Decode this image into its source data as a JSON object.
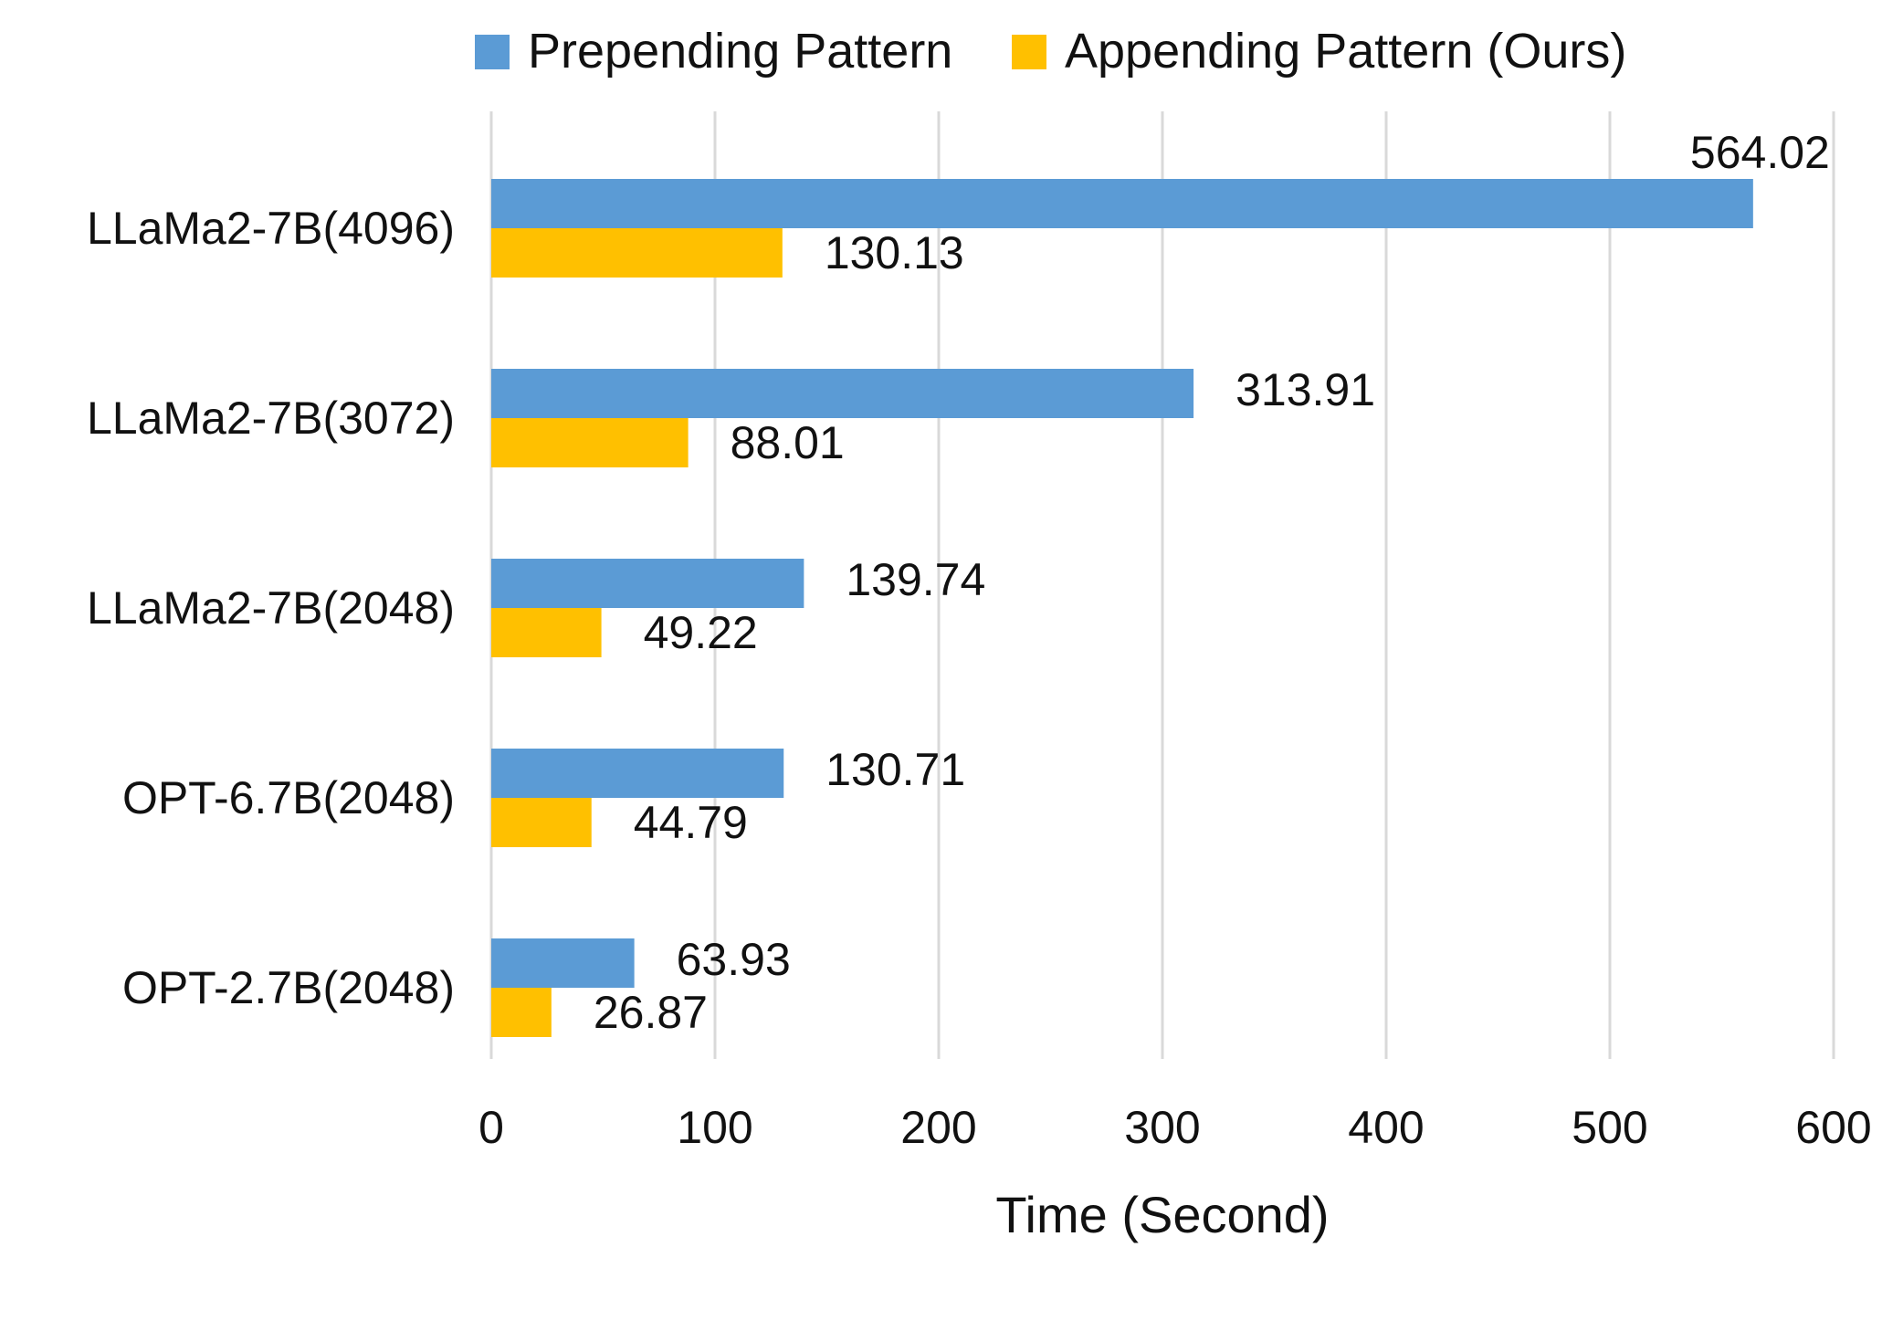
{
  "chart_data": {
    "type": "bar",
    "orientation": "horizontal",
    "categories": [
      "LLaMa2-7B(4096)",
      "LLaMa2-7B(3072)",
      "LLaMa2-7B(2048)",
      "OPT-6.7B(2048)",
      "OPT-2.7B(2048)"
    ],
    "series": [
      {
        "name": "Prepending Pattern",
        "color": "#5b9bd5",
        "values": [
          564.02,
          313.91,
          139.74,
          130.71,
          63.93
        ],
        "labels": [
          "564.02",
          "313.91",
          "139.74",
          "130.71",
          "63.93"
        ]
      },
      {
        "name": "Appending Pattern (Ours)",
        "color": "#ffc000",
        "values": [
          130.13,
          88.01,
          49.22,
          44.79,
          26.87
        ],
        "labels": [
          "130.13",
          "88.01",
          "49.22",
          "44.79",
          "26.87"
        ]
      }
    ],
    "title": "",
    "xlabel": "Time (Second)",
    "ylabel": "",
    "xlim": [
      0,
      600
    ],
    "xticks": [
      "0",
      "100",
      "200",
      "300",
      "400",
      "500",
      "600"
    ],
    "grid": "vertical",
    "legend": "top"
  }
}
